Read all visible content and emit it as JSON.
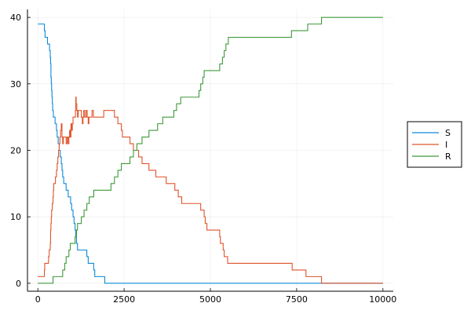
{
  "chart_data": {
    "type": "line",
    "style": "step",
    "title": "",
    "xlabel": "",
    "ylabel": "",
    "xlim": [
      -300,
      10300
    ],
    "ylim": [
      -1.2,
      41.2
    ],
    "grid": true,
    "legend_position": "right",
    "x_ticks": [
      0,
      2500,
      5000,
      7500,
      10000
    ],
    "y_ticks": [
      0,
      10,
      20,
      30,
      40
    ],
    "x_tick_labels": [
      "0",
      "2500",
      "5000",
      "7500",
      "10000"
    ],
    "y_tick_labels": [
      "0",
      "10",
      "20",
      "30",
      "40"
    ],
    "series": [
      {
        "name": "S",
        "color": "#0b8bd8",
        "points": [
          [
            0,
            39
          ],
          [
            180,
            39
          ],
          [
            190,
            38
          ],
          [
            210,
            37
          ],
          [
            270,
            37
          ],
          [
            280,
            36
          ],
          [
            330,
            36
          ],
          [
            340,
            35
          ],
          [
            360,
            34
          ],
          [
            370,
            33
          ],
          [
            380,
            31
          ],
          [
            390,
            30
          ],
          [
            400,
            29
          ],
          [
            410,
            28
          ],
          [
            420,
            27
          ],
          [
            430,
            26
          ],
          [
            450,
            25
          ],
          [
            480,
            25
          ],
          [
            500,
            24
          ],
          [
            540,
            23
          ],
          [
            560,
            22
          ],
          [
            590,
            21
          ],
          [
            620,
            20
          ],
          [
            650,
            19
          ],
          [
            680,
            18
          ],
          [
            700,
            17
          ],
          [
            720,
            16
          ],
          [
            750,
            15
          ],
          [
            800,
            15
          ],
          [
            820,
            14
          ],
          [
            880,
            13
          ],
          [
            950,
            12
          ],
          [
            980,
            11
          ],
          [
            1020,
            10
          ],
          [
            1050,
            9
          ],
          [
            1080,
            8
          ],
          [
            1100,
            7
          ],
          [
            1120,
            6
          ],
          [
            1150,
            5
          ],
          [
            1400,
            5
          ],
          [
            1420,
            4
          ],
          [
            1460,
            3
          ],
          [
            1600,
            3
          ],
          [
            1620,
            2
          ],
          [
            1650,
            1
          ],
          [
            1920,
            1
          ],
          [
            1940,
            0
          ],
          [
            10000,
            0
          ]
        ]
      },
      {
        "name": "I",
        "color": "#e0532a",
        "points": [
          [
            0,
            1
          ],
          [
            180,
            1
          ],
          [
            190,
            2
          ],
          [
            200,
            3
          ],
          [
            300,
            3
          ],
          [
            310,
            4
          ],
          [
            330,
            5
          ],
          [
            360,
            6
          ],
          [
            370,
            8
          ],
          [
            380,
            9
          ],
          [
            390,
            10
          ],
          [
            400,
            11
          ],
          [
            420,
            12
          ],
          [
            440,
            13
          ],
          [
            450,
            14
          ],
          [
            460,
            15
          ],
          [
            500,
            15
          ],
          [
            510,
            16
          ],
          [
            540,
            17
          ],
          [
            560,
            18
          ],
          [
            580,
            19
          ],
          [
            600,
            20
          ],
          [
            620,
            21
          ],
          [
            640,
            22
          ],
          [
            660,
            23
          ],
          [
            680,
            24
          ],
          [
            700,
            22
          ],
          [
            720,
            21
          ],
          [
            740,
            22
          ],
          [
            800,
            22
          ],
          [
            820,
            21
          ],
          [
            850,
            22
          ],
          [
            880,
            21
          ],
          [
            900,
            22
          ],
          [
            920,
            23
          ],
          [
            940,
            22
          ],
          [
            960,
            24
          ],
          [
            980,
            23
          ],
          [
            1000,
            24
          ],
          [
            1020,
            25
          ],
          [
            1080,
            25
          ],
          [
            1090,
            26
          ],
          [
            1100,
            28
          ],
          [
            1110,
            27
          ],
          [
            1130,
            26
          ],
          [
            1150,
            25
          ],
          [
            1170,
            26
          ],
          [
            1250,
            26
          ],
          [
            1260,
            25
          ],
          [
            1290,
            24
          ],
          [
            1310,
            25
          ],
          [
            1330,
            26
          ],
          [
            1360,
            25
          ],
          [
            1400,
            26
          ],
          [
            1430,
            25
          ],
          [
            1460,
            24
          ],
          [
            1480,
            25
          ],
          [
            1560,
            25
          ],
          [
            1570,
            26
          ],
          [
            1600,
            26
          ],
          [
            1610,
            25
          ],
          [
            1900,
            25
          ],
          [
            1910,
            26
          ],
          [
            2200,
            26
          ],
          [
            2220,
            25
          ],
          [
            2300,
            25
          ],
          [
            2320,
            24
          ],
          [
            2400,
            24
          ],
          [
            2420,
            23
          ],
          [
            2450,
            22
          ],
          [
            2650,
            22
          ],
          [
            2670,
            21
          ],
          [
            2750,
            21
          ],
          [
            2770,
            20
          ],
          [
            2900,
            20
          ],
          [
            2920,
            19
          ],
          [
            3000,
            19
          ],
          [
            3020,
            18
          ],
          [
            3200,
            18
          ],
          [
            3220,
            17
          ],
          [
            3400,
            17
          ],
          [
            3420,
            16
          ],
          [
            3700,
            16
          ],
          [
            3720,
            15
          ],
          [
            3950,
            15
          ],
          [
            3970,
            14
          ],
          [
            4050,
            14
          ],
          [
            4070,
            13
          ],
          [
            4150,
            13
          ],
          [
            4170,
            12
          ],
          [
            4700,
            12
          ],
          [
            4720,
            11
          ],
          [
            4800,
            11
          ],
          [
            4820,
            10
          ],
          [
            4850,
            9
          ],
          [
            4900,
            8
          ],
          [
            5250,
            8
          ],
          [
            5270,
            7
          ],
          [
            5290,
            6
          ],
          [
            5350,
            6
          ],
          [
            5370,
            5
          ],
          [
            5400,
            4
          ],
          [
            5480,
            4
          ],
          [
            5500,
            3
          ],
          [
            7350,
            3
          ],
          [
            7370,
            2
          ],
          [
            7750,
            2
          ],
          [
            7770,
            1
          ],
          [
            8200,
            1
          ],
          [
            8220,
            0
          ],
          [
            10000,
            0
          ]
        ]
      },
      {
        "name": "R",
        "color": "#3e9a3a",
        "points": [
          [
            0,
            0
          ],
          [
            430,
            0
          ],
          [
            440,
            1
          ],
          [
            700,
            1
          ],
          [
            720,
            2
          ],
          [
            780,
            3
          ],
          [
            820,
            4
          ],
          [
            900,
            5
          ],
          [
            940,
            6
          ],
          [
            1060,
            6
          ],
          [
            1080,
            7
          ],
          [
            1120,
            8
          ],
          [
            1150,
            9
          ],
          [
            1240,
            9
          ],
          [
            1260,
            10
          ],
          [
            1320,
            10
          ],
          [
            1340,
            11
          ],
          [
            1400,
            11
          ],
          [
            1420,
            12
          ],
          [
            1470,
            12
          ],
          [
            1490,
            13
          ],
          [
            1600,
            13
          ],
          [
            1620,
            14
          ],
          [
            2100,
            14
          ],
          [
            2120,
            15
          ],
          [
            2200,
            15
          ],
          [
            2220,
            16
          ],
          [
            2300,
            16
          ],
          [
            2320,
            17
          ],
          [
            2400,
            17
          ],
          [
            2420,
            18
          ],
          [
            2650,
            18
          ],
          [
            2670,
            19
          ],
          [
            2750,
            19
          ],
          [
            2770,
            20
          ],
          [
            2850,
            20
          ],
          [
            2870,
            21
          ],
          [
            3000,
            21
          ],
          [
            3020,
            22
          ],
          [
            3200,
            22
          ],
          [
            3220,
            23
          ],
          [
            3450,
            23
          ],
          [
            3470,
            24
          ],
          [
            3600,
            24
          ],
          [
            3620,
            25
          ],
          [
            3920,
            25
          ],
          [
            3940,
            26
          ],
          [
            4000,
            26
          ],
          [
            4020,
            27
          ],
          [
            4120,
            27
          ],
          [
            4140,
            28
          ],
          [
            4650,
            28
          ],
          [
            4670,
            29
          ],
          [
            4720,
            30
          ],
          [
            4780,
            31
          ],
          [
            4820,
            32
          ],
          [
            5250,
            32
          ],
          [
            5270,
            33
          ],
          [
            5350,
            34
          ],
          [
            5400,
            35
          ],
          [
            5450,
            36
          ],
          [
            5520,
            37
          ],
          [
            7330,
            37
          ],
          [
            7350,
            38
          ],
          [
            7800,
            38
          ],
          [
            7820,
            39
          ],
          [
            8200,
            39
          ],
          [
            8220,
            40
          ],
          [
            10000,
            40
          ]
        ]
      }
    ]
  }
}
